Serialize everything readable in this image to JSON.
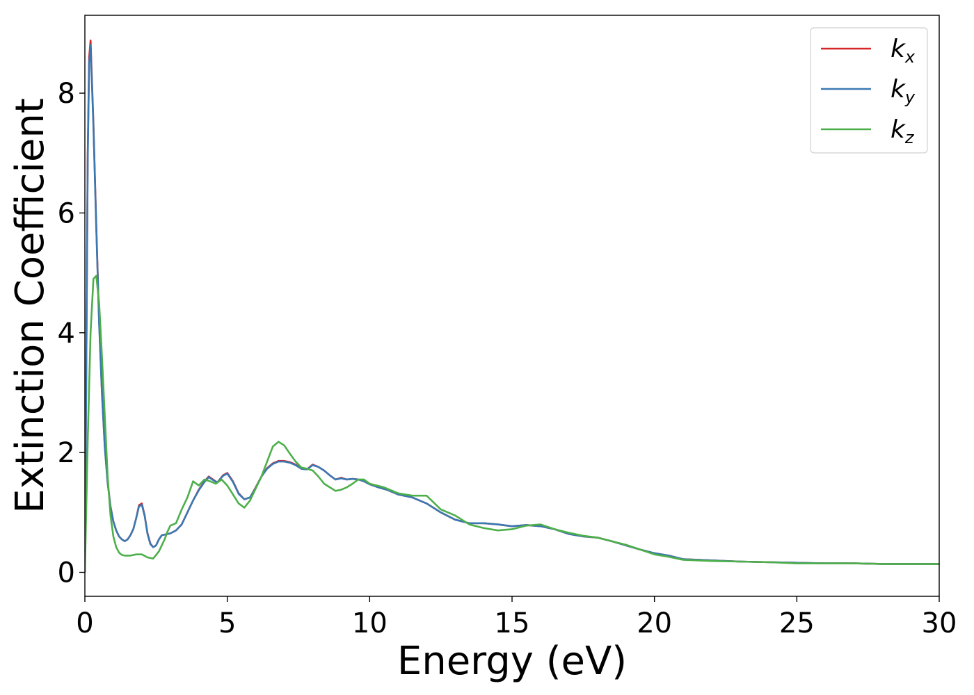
{
  "chart_data": {
    "type": "line",
    "title": "",
    "xlabel": "Energy (eV)",
    "ylabel": "Extinction Coefficient",
    "xlim": [
      0,
      30
    ],
    "ylim": [
      -0.4,
      9.3
    ],
    "xticks": [
      0,
      5,
      10,
      15,
      20,
      25,
      30
    ],
    "yticks": [
      0,
      2,
      4,
      6,
      8
    ],
    "grid": false,
    "legend_position": "top-right",
    "series": [
      {
        "name": "k",
        "subscript": "x",
        "color": "#d62728",
        "x": [
          0,
          0.05,
          0.1,
          0.15,
          0.2,
          0.3,
          0.4,
          0.5,
          0.6,
          0.7,
          0.8,
          0.9,
          1.0,
          1.1,
          1.2,
          1.3,
          1.4,
          1.5,
          1.6,
          1.7,
          1.8,
          1.9,
          2.0,
          2.1,
          2.2,
          2.3,
          2.4,
          2.5,
          2.6,
          2.7,
          2.8,
          3.0,
          3.2,
          3.4,
          3.6,
          3.8,
          4.0,
          4.2,
          4.35,
          4.5,
          4.65,
          4.85,
          5.0,
          5.2,
          5.4,
          5.6,
          5.8,
          6.0,
          6.2,
          6.4,
          6.6,
          6.8,
          7.0,
          7.2,
          7.4,
          7.6,
          7.8,
          8.0,
          8.2,
          8.4,
          8.6,
          8.8,
          9.0,
          9.2,
          9.4,
          9.6,
          9.8,
          10.0,
          10.3,
          10.6,
          11.0,
          11.5,
          12.0,
          12.5,
          13.0,
          13.5,
          14.0,
          14.5,
          15.0,
          15.5,
          16.0,
          16.5,
          17.0,
          17.5,
          18.0,
          18.5,
          19.0,
          19.5,
          20.0,
          20.5,
          21.0,
          22.0,
          23.0,
          24.0,
          25.0,
          26.0,
          27.0,
          28.0,
          29.0,
          30.0
        ],
        "values": [
          0.0,
          3.5,
          7.0,
          8.6,
          8.88,
          7.5,
          5.8,
          4.2,
          3.0,
          2.1,
          1.5,
          1.1,
          0.85,
          0.7,
          0.6,
          0.55,
          0.52,
          0.55,
          0.62,
          0.72,
          0.9,
          1.12,
          1.15,
          0.95,
          0.65,
          0.48,
          0.42,
          0.45,
          0.55,
          0.62,
          0.63,
          0.65,
          0.7,
          0.8,
          1.0,
          1.2,
          1.38,
          1.52,
          1.6,
          1.55,
          1.5,
          1.62,
          1.66,
          1.52,
          1.32,
          1.22,
          1.25,
          1.42,
          1.6,
          1.74,
          1.82,
          1.86,
          1.86,
          1.84,
          1.8,
          1.73,
          1.72,
          1.8,
          1.76,
          1.7,
          1.62,
          1.55,
          1.58,
          1.55,
          1.56,
          1.55,
          1.52,
          1.47,
          1.42,
          1.38,
          1.3,
          1.25,
          1.15,
          1.0,
          0.88,
          0.82,
          0.82,
          0.8,
          0.77,
          0.79,
          0.77,
          0.72,
          0.64,
          0.6,
          0.58,
          0.52,
          0.45,
          0.38,
          0.32,
          0.28,
          0.22,
          0.2,
          0.18,
          0.17,
          0.16,
          0.15,
          0.15,
          0.14,
          0.14,
          0.14
        ]
      },
      {
        "name": "k",
        "subscript": "y",
        "color": "#3a78b2",
        "x": [
          0,
          0.05,
          0.1,
          0.15,
          0.2,
          0.3,
          0.4,
          0.5,
          0.6,
          0.7,
          0.8,
          0.9,
          1.0,
          1.1,
          1.2,
          1.3,
          1.4,
          1.5,
          1.6,
          1.7,
          1.8,
          1.9,
          2.0,
          2.1,
          2.2,
          2.3,
          2.4,
          2.5,
          2.6,
          2.7,
          2.8,
          3.0,
          3.2,
          3.4,
          3.6,
          3.8,
          4.0,
          4.2,
          4.35,
          4.5,
          4.65,
          4.85,
          5.0,
          5.2,
          5.4,
          5.6,
          5.8,
          6.0,
          6.2,
          6.4,
          6.6,
          6.8,
          7.0,
          7.2,
          7.4,
          7.6,
          7.8,
          8.0,
          8.2,
          8.4,
          8.6,
          8.8,
          9.0,
          9.2,
          9.4,
          9.6,
          9.8,
          10.0,
          10.3,
          10.6,
          11.0,
          11.5,
          12.0,
          12.5,
          13.0,
          13.5,
          14.0,
          14.5,
          15.0,
          15.5,
          16.0,
          16.5,
          17.0,
          17.5,
          18.0,
          18.5,
          19.0,
          19.5,
          20.0,
          20.5,
          21.0,
          22.0,
          23.0,
          24.0,
          25.0,
          26.0,
          27.0,
          28.0,
          29.0,
          30.0
        ],
        "values": [
          0.0,
          3.4,
          6.9,
          8.5,
          8.8,
          7.45,
          5.75,
          4.15,
          2.98,
          2.08,
          1.49,
          1.1,
          0.85,
          0.7,
          0.6,
          0.55,
          0.52,
          0.55,
          0.62,
          0.72,
          0.9,
          1.1,
          1.13,
          0.94,
          0.64,
          0.47,
          0.42,
          0.45,
          0.55,
          0.62,
          0.63,
          0.65,
          0.7,
          0.8,
          1.0,
          1.2,
          1.37,
          1.51,
          1.59,
          1.54,
          1.5,
          1.61,
          1.65,
          1.51,
          1.31,
          1.22,
          1.25,
          1.41,
          1.6,
          1.73,
          1.81,
          1.85,
          1.85,
          1.83,
          1.79,
          1.73,
          1.72,
          1.79,
          1.76,
          1.7,
          1.62,
          1.55,
          1.57,
          1.55,
          1.56,
          1.55,
          1.52,
          1.47,
          1.42,
          1.38,
          1.3,
          1.25,
          1.15,
          1.0,
          0.88,
          0.82,
          0.82,
          0.8,
          0.77,
          0.79,
          0.77,
          0.72,
          0.64,
          0.6,
          0.58,
          0.52,
          0.45,
          0.38,
          0.32,
          0.28,
          0.22,
          0.2,
          0.18,
          0.17,
          0.16,
          0.15,
          0.15,
          0.14,
          0.14,
          0.14
        ]
      },
      {
        "name": "k",
        "subscript": "z",
        "color": "#4daf4a",
        "x": [
          0,
          0.1,
          0.2,
          0.3,
          0.4,
          0.5,
          0.6,
          0.7,
          0.8,
          0.9,
          1.0,
          1.1,
          1.2,
          1.3,
          1.4,
          1.6,
          1.8,
          2.0,
          2.2,
          2.4,
          2.6,
          2.8,
          2.9,
          3.0,
          3.2,
          3.4,
          3.6,
          3.8,
          4.0,
          4.2,
          4.4,
          4.6,
          4.8,
          5.0,
          5.2,
          5.4,
          5.6,
          5.8,
          6.0,
          6.2,
          6.4,
          6.6,
          6.8,
          7.0,
          7.2,
          7.4,
          7.6,
          7.8,
          8.0,
          8.2,
          8.4,
          8.6,
          8.8,
          9.0,
          9.2,
          9.4,
          9.6,
          9.8,
          10.0,
          10.5,
          11.0,
          11.5,
          12.0,
          12.5,
          13.0,
          13.5,
          14.0,
          14.5,
          15.0,
          15.5,
          16.0,
          16.5,
          17.0,
          17.5,
          18.0,
          18.5,
          19.0,
          19.5,
          20.0,
          20.5,
          21.0,
          22.0,
          23.0,
          24.0,
          25.0,
          26.0,
          27.0,
          28.0,
          29.0,
          30.0
        ],
        "values": [
          0.0,
          2.2,
          4.0,
          4.9,
          4.95,
          4.5,
          3.6,
          2.6,
          1.6,
          0.95,
          0.6,
          0.42,
          0.33,
          0.29,
          0.28,
          0.28,
          0.3,
          0.3,
          0.25,
          0.23,
          0.35,
          0.55,
          0.68,
          0.78,
          0.82,
          1.05,
          1.25,
          1.52,
          1.45,
          1.55,
          1.52,
          1.48,
          1.55,
          1.45,
          1.3,
          1.15,
          1.08,
          1.2,
          1.4,
          1.6,
          1.85,
          2.1,
          2.18,
          2.12,
          1.98,
          1.85,
          1.75,
          1.73,
          1.7,
          1.6,
          1.48,
          1.42,
          1.36,
          1.38,
          1.42,
          1.48,
          1.55,
          1.55,
          1.48,
          1.42,
          1.32,
          1.28,
          1.28,
          1.05,
          0.95,
          0.8,
          0.74,
          0.7,
          0.72,
          0.78,
          0.8,
          0.72,
          0.66,
          0.61,
          0.58,
          0.52,
          0.46,
          0.38,
          0.3,
          0.26,
          0.21,
          0.19,
          0.18,
          0.17,
          0.15,
          0.15,
          0.15,
          0.14,
          0.14,
          0.14
        ]
      }
    ]
  }
}
